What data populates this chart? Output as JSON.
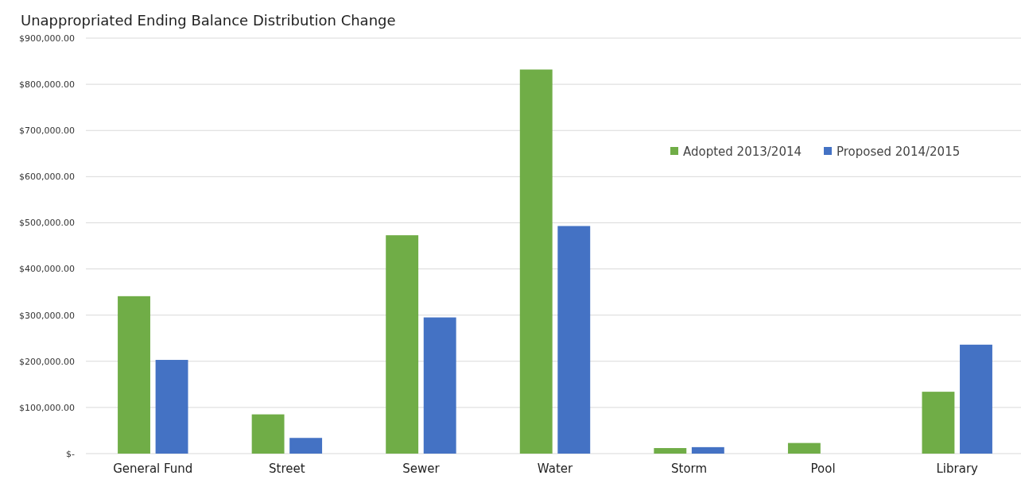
{
  "chart_data": {
    "type": "bar",
    "title": "Unappropriated Ending Balance Distribution Change",
    "categories": [
      "General Fund",
      "Street",
      "Sewer",
      "Water",
      "Storm",
      "Pool",
      "Library"
    ],
    "series": [
      {
        "name": "Adopted 2013/2014",
        "color": "#70ad47",
        "values": [
          341000,
          85000,
          473000,
          832000,
          12000,
          23000,
          134000
        ]
      },
      {
        "name": "Proposed 2014/2015",
        "color": "#4472c4",
        "values": [
          203000,
          34000,
          295000,
          493000,
          14000,
          0,
          236000
        ]
      }
    ],
    "ylim": [
      0,
      900000
    ],
    "yticks": [
      {
        "value": 0,
        "label": "$-"
      },
      {
        "value": 100000,
        "label": "$100,000.00"
      },
      {
        "value": 200000,
        "label": "$200,000.00"
      },
      {
        "value": 300000,
        "label": "$300,000.00"
      },
      {
        "value": 400000,
        "label": "$400,000.00"
      },
      {
        "value": 500000,
        "label": "$500,000.00"
      },
      {
        "value": 600000,
        "label": "$600,000.00"
      },
      {
        "value": 700000,
        "label": "$700,000.00"
      },
      {
        "value": 800000,
        "label": "$800,000.00"
      },
      {
        "value": 900000,
        "label": "$900,000.00"
      }
    ],
    "grid": "y",
    "legend": "top right"
  }
}
